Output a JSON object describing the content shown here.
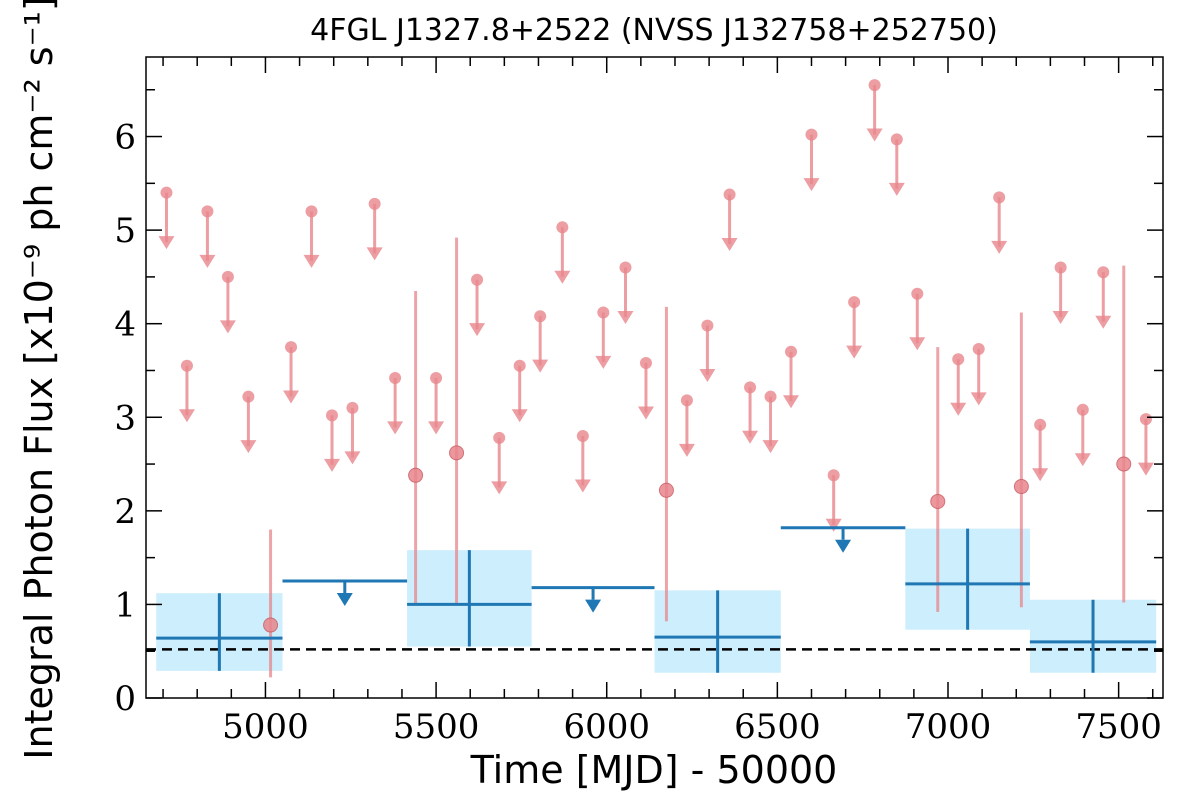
{
  "chart_data": {
    "type": "scatter",
    "title": "4FGL J1327.8+2522 (NVSS J132758+252750)",
    "xlabel": "Time [MJD] - 50000",
    "ylabel": "Integral Photon Flux [x10⁻⁹ ph cm⁻² s⁻¹]",
    "xlim": [
      4650,
      7630
    ],
    "ylim": [
      0,
      6.85
    ],
    "x_ticks": [
      5000,
      5500,
      6000,
      6500,
      7000,
      7500
    ],
    "y_ticks": [
      0,
      1,
      2,
      3,
      4,
      5,
      6
    ],
    "reference_line": {
      "y": 0.52,
      "style": "dashed"
    },
    "colors": {
      "short": "#e8868c",
      "long": "#1f77b4",
      "band": "#cdeefc",
      "reference": "#000000"
    },
    "series": [
      {
        "upper_limits": [
          {
            "x": 4710,
            "y": 5.4
          },
          {
            "x": 4770,
            "y": 3.55
          },
          {
            "x": 4830,
            "y": 5.2
          },
          {
            "x": 4890,
            "y": 4.5
          },
          {
            "x": 4950,
            "y": 3.22
          },
          {
            "x": 5075,
            "y": 3.75
          },
          {
            "x": 5135,
            "y": 5.2
          },
          {
            "x": 5195,
            "y": 3.02
          },
          {
            "x": 5255,
            "y": 3.1
          },
          {
            "x": 5320,
            "y": 5.28
          },
          {
            "x": 5380,
            "y": 3.42
          },
          {
            "x": 5500,
            "y": 3.42
          },
          {
            "x": 5620,
            "y": 4.47
          },
          {
            "x": 5685,
            "y": 2.78
          },
          {
            "x": 5745,
            "y": 3.55
          },
          {
            "x": 5805,
            "y": 4.08
          },
          {
            "x": 5870,
            "y": 5.03
          },
          {
            "x": 5930,
            "y": 2.8
          },
          {
            "x": 5990,
            "y": 4.12
          },
          {
            "x": 6055,
            "y": 4.6
          },
          {
            "x": 6115,
            "y": 3.58
          },
          {
            "x": 6235,
            "y": 3.18
          },
          {
            "x": 6295,
            "y": 3.98
          },
          {
            "x": 6360,
            "y": 5.38
          },
          {
            "x": 6420,
            "y": 3.32
          },
          {
            "x": 6480,
            "y": 3.22
          },
          {
            "x": 6540,
            "y": 3.7
          },
          {
            "x": 6600,
            "y": 6.02
          },
          {
            "x": 6665,
            "y": 2.38
          },
          {
            "x": 6725,
            "y": 4.23
          },
          {
            "x": 6785,
            "y": 6.55
          },
          {
            "x": 6850,
            "y": 5.97
          },
          {
            "x": 6910,
            "y": 4.32
          },
          {
            "x": 7030,
            "y": 3.62
          },
          {
            "x": 7090,
            "y": 3.73
          },
          {
            "x": 7150,
            "y": 5.35
          },
          {
            "x": 7270,
            "y": 2.92
          },
          {
            "x": 7330,
            "y": 4.6
          },
          {
            "x": 7395,
            "y": 3.08
          },
          {
            "x": 7455,
            "y": 4.55
          },
          {
            "x": 7580,
            "y": 2.98
          }
        ],
        "detections": [
          {
            "x": 5015,
            "y": 0.78,
            "ylow": 0.22,
            "yhigh": 1.8
          },
          {
            "x": 5440,
            "y": 2.38,
            "ylow": 1.0,
            "yhigh": 4.35
          },
          {
            "x": 5560,
            "y": 2.62,
            "ylow": 1.0,
            "yhigh": 4.92
          },
          {
            "x": 6175,
            "y": 2.22,
            "ylow": 0.82,
            "yhigh": 4.18
          },
          {
            "x": 6970,
            "y": 2.1,
            "ylow": 0.92,
            "yhigh": 3.75
          },
          {
            "x": 7215,
            "y": 2.26,
            "ylow": 0.97,
            "yhigh": 4.12
          },
          {
            "x": 7515,
            "y": 2.5,
            "ylow": 1.02,
            "yhigh": 4.62
          }
        ]
      },
      {
        "detections": [
          {
            "x0": 4680,
            "x1": 5050,
            "y": 0.64,
            "ylow": 0.29,
            "yhigh": 1.12
          },
          {
            "x0": 5415,
            "x1": 5780,
            "y": 1.0,
            "ylow": 0.55,
            "yhigh": 1.58
          },
          {
            "x0": 6140,
            "x1": 6510,
            "y": 0.65,
            "ylow": 0.27,
            "yhigh": 1.15
          },
          {
            "x0": 6875,
            "x1": 7240,
            "y": 1.22,
            "ylow": 0.73,
            "yhigh": 1.81
          },
          {
            "x0": 7240,
            "x1": 7610,
            "y": 0.6,
            "ylow": 0.27,
            "yhigh": 1.05
          }
        ],
        "upper_limits": [
          {
            "x0": 5050,
            "x1": 5415,
            "y": 1.25
          },
          {
            "x0": 5780,
            "x1": 6140,
            "y": 1.18
          },
          {
            "x0": 6510,
            "x1": 6875,
            "y": 1.82
          }
        ]
      }
    ]
  }
}
